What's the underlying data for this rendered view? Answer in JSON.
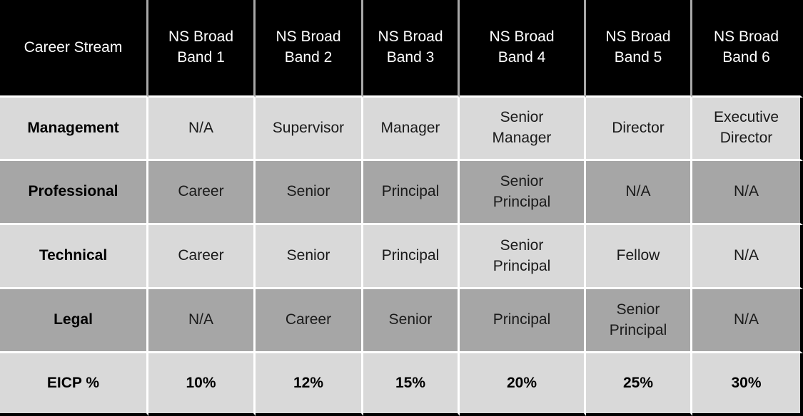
{
  "colors": {
    "header_bg": "#000000",
    "header_text": "#ffffff",
    "row_light": "#d9d9d9",
    "row_dark": "#a6a6a6",
    "gridline": "#ffffff",
    "outer_edge": "#000000",
    "body_text": "#1a1a1a"
  },
  "chart_data": {
    "type": "table",
    "columns": [
      "Career Stream",
      "NS Broad Band 1",
      "NS Broad Band 2",
      "NS Broad Band 3",
      "NS Broad Band 4",
      "NS Broad Band 5",
      "NS Broad Band 6"
    ],
    "rows": [
      {
        "stream": "Management",
        "values": [
          "N/A",
          "Supervisor",
          "Manager",
          "Senior Manager",
          "Director",
          "Executive Director"
        ]
      },
      {
        "stream": "Professional",
        "values": [
          "Career",
          "Senior",
          "Principal",
          "Senior Principal",
          "N/A",
          "N/A"
        ]
      },
      {
        "stream": "Technical",
        "values": [
          "Career",
          "Senior",
          "Principal",
          "Senior Principal",
          "Fellow",
          "N/A"
        ]
      },
      {
        "stream": "Legal",
        "values": [
          "N/A",
          "Career",
          "Senior",
          "Principal",
          "Senior Principal",
          "N/A"
        ]
      },
      {
        "stream": "EICP %",
        "values": [
          "10%",
          "12%",
          "15%",
          "20%",
          "25%",
          "30%"
        ]
      }
    ]
  }
}
